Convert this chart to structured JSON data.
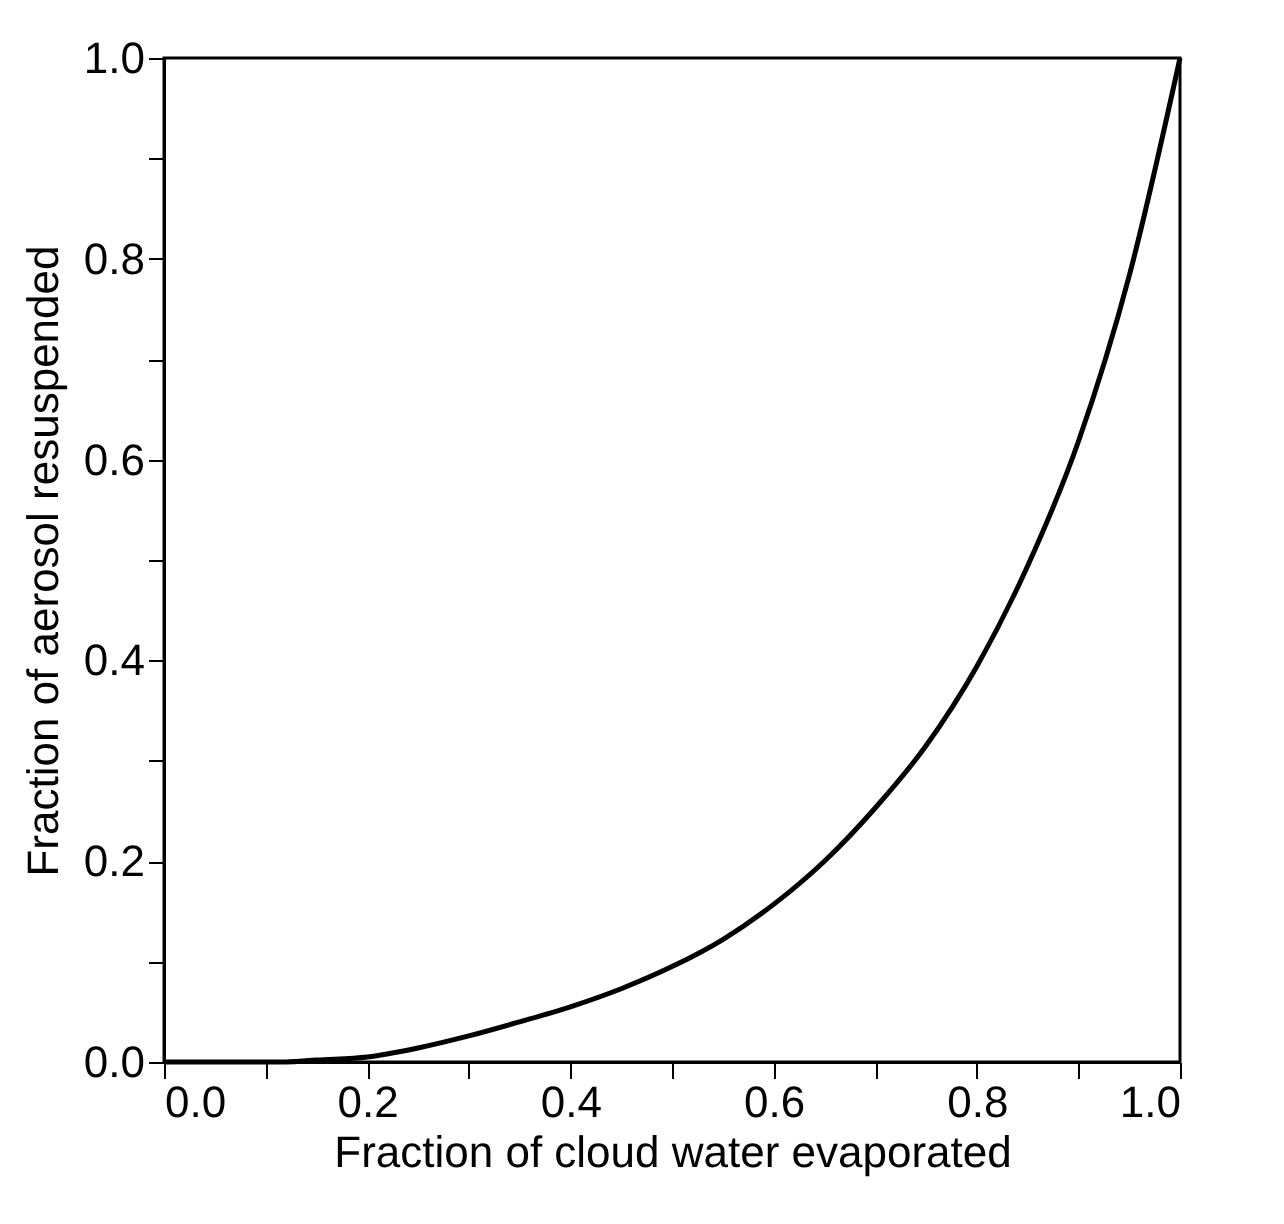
{
  "chart_data": {
    "type": "line",
    "xlabel": "Fraction of cloud water evaporated",
    "ylabel": "Fraction of aerosol resuspended",
    "x": [
      0,
      0.1,
      0.12,
      0.15,
      0.2,
      0.25,
      0.3,
      0.35,
      0.4,
      0.45,
      0.5,
      0.55,
      0.6,
      0.65,
      0.7,
      0.75,
      0.8,
      0.85,
      0.9,
      0.95,
      1.0
    ],
    "series": [
      {
        "color": "#000000",
        "values": [
          0,
          0,
          0,
          0.002,
          0.005,
          0.014,
          0.026,
          0.04,
          0.055,
          0.073,
          0.095,
          0.122,
          0.157,
          0.2,
          0.253,
          0.315,
          0.394,
          0.494,
          0.618,
          0.783,
          1.0
        ]
      }
    ],
    "xlim": [
      0,
      1
    ],
    "ylim": [
      0,
      1
    ],
    "xticks": [
      {
        "value": 0,
        "label": "0.0"
      },
      {
        "value": 0.1,
        "label": null
      },
      0.2,
      {
        "value": 0.3,
        "label": null
      },
      0.4,
      {
        "value": 0.5,
        "label": null
      },
      0.6,
      {
        "value": 0.7,
        "label": null
      },
      0.8,
      {
        "value": 0.9,
        "label": null
      },
      {
        "value": 1,
        "label": "1.0"
      }
    ],
    "yticks": [
      {
        "value": 0,
        "label": "0.0"
      },
      {
        "value": 0.1,
        "label": null
      },
      0.2,
      {
        "value": 0.3,
        "label": null
      },
      0.4,
      {
        "value": 0.5,
        "label": null
      },
      0.6,
      {
        "value": 0.7,
        "label": null
      },
      0.8,
      {
        "value": 0.9,
        "label": null
      },
      {
        "value": 1,
        "label": "1.0"
      }
    ],
    "grid": false,
    "marker": "none",
    "line_style": "solid"
  }
}
